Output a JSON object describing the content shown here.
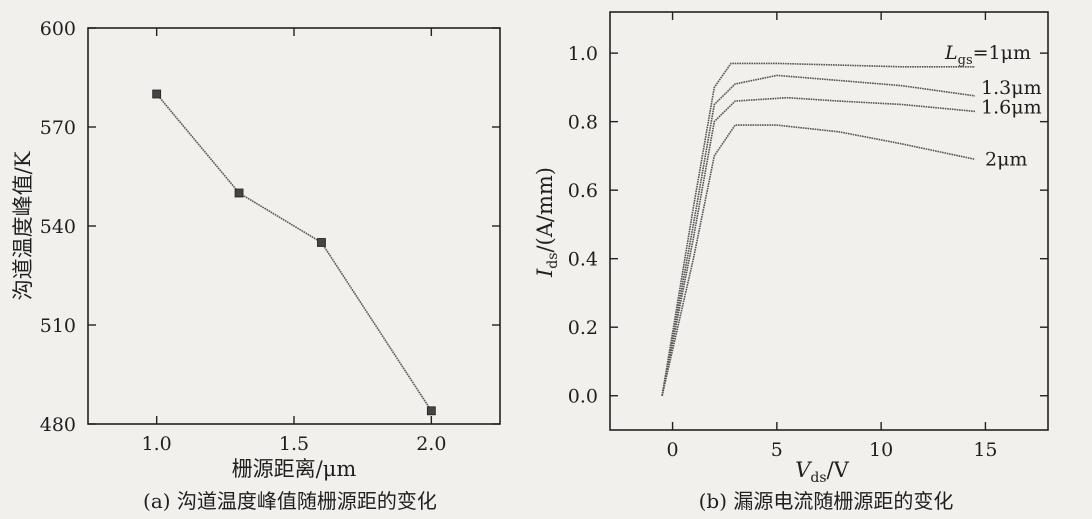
{
  "chart_data": [
    {
      "type": "line",
      "xlabel": "栅源距离/μm",
      "ylabel": "沟道温度峰值/K",
      "caption": "(a) 沟道温度峰值随栅源距的变化",
      "xlim": [
        0.75,
        2.25
      ],
      "ylim": [
        480,
        600
      ],
      "xticks": [
        1.0,
        1.5,
        2.0
      ],
      "xtick_labels": [
        "1.0",
        "1.5",
        "2.0"
      ],
      "yticks": [
        480,
        510,
        540,
        570,
        600
      ],
      "ytick_labels": [
        "480",
        "510",
        "540",
        "570",
        "600"
      ],
      "series": [
        {
          "x": [
            1.0,
            1.3,
            1.6,
            2.0
          ],
          "y": [
            580,
            550,
            535,
            484
          ]
        }
      ]
    },
    {
      "type": "line",
      "xlabel_main": "V",
      "xlabel_sub": "ds",
      "xlabel_unit": "/V",
      "ylabel_main": "I",
      "ylabel_sub": "ds",
      "ylabel_unit": "/(A/mm)",
      "caption": "(b) 漏源电流随栅源距的变化",
      "xlim": [
        -3,
        18
      ],
      "ylim": [
        -0.1,
        1.12
      ],
      "xticks": [
        0,
        5,
        10,
        15
      ],
      "xtick_labels": [
        "0",
        "5",
        "10",
        "15"
      ],
      "yticks": [
        0.0,
        0.2,
        0.4,
        0.6,
        0.8,
        1.0
      ],
      "ytick_labels": [
        "0.0",
        "0.2",
        "0.4",
        "0.6",
        "0.8",
        "1.0"
      ],
      "series_label_prefix": "L",
      "series_label_prefix_sub": "gs",
      "series_label_prefix_eq": "=",
      "series": [
        {
          "name": "1μm",
          "x": [
            -0.5,
            1.0,
            2.0,
            2.8,
            5,
            8,
            11,
            14.5
          ],
          "y": [
            0.0,
            0.55,
            0.9,
            0.97,
            0.97,
            0.965,
            0.96,
            0.96
          ]
        },
        {
          "name": "1.3μm",
          "x": [
            -0.5,
            1.0,
            2.0,
            3.0,
            5,
            8,
            11,
            14.5
          ],
          "y": [
            0.0,
            0.5,
            0.85,
            0.91,
            0.935,
            0.92,
            0.905,
            0.875
          ]
        },
        {
          "name": "1.6μm",
          "x": [
            -0.5,
            1.0,
            2.0,
            3.0,
            5.5,
            8,
            11,
            14.5
          ],
          "y": [
            0.0,
            0.46,
            0.8,
            0.86,
            0.87,
            0.86,
            0.85,
            0.83
          ]
        },
        {
          "name": "2μm",
          "x": [
            -0.5,
            1.0,
            2.0,
            3.0,
            5,
            8,
            11,
            14.5
          ],
          "y": [
            0.0,
            0.4,
            0.7,
            0.79,
            0.79,
            0.77,
            0.735,
            0.69
          ]
        }
      ]
    }
  ]
}
